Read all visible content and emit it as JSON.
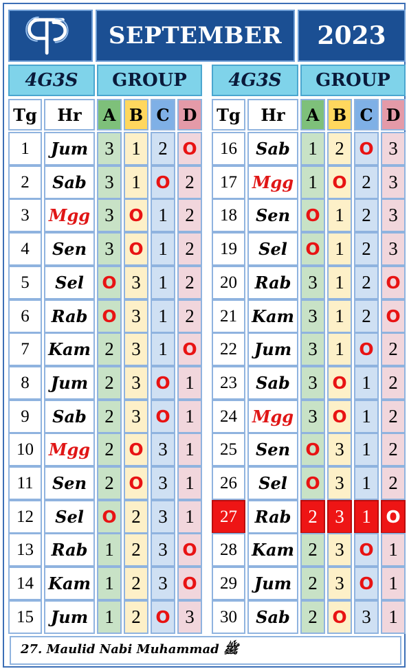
{
  "logo": "GT logo",
  "header": {
    "month": "SEPTEMBER",
    "year": "2023"
  },
  "subheader": {
    "left_code": "4G3S",
    "left_label": "GROUP",
    "right_code": "4G3S",
    "right_label": "GROUP"
  },
  "columns": [
    "Tg",
    "Hr",
    "A",
    "B",
    "C",
    "D"
  ],
  "off_marker": "O",
  "rows": [
    {
      "tg": "1",
      "hr": "Jum",
      "red": false,
      "v": [
        "3",
        "1",
        "2",
        "O"
      ]
    },
    {
      "tg": "2",
      "hr": "Sab",
      "red": false,
      "v": [
        "3",
        "1",
        "O",
        "2"
      ]
    },
    {
      "tg": "3",
      "hr": "Mgg",
      "red": true,
      "v": [
        "3",
        "O",
        "1",
        "2"
      ]
    },
    {
      "tg": "4",
      "hr": "Sen",
      "red": false,
      "v": [
        "3",
        "O",
        "1",
        "2"
      ]
    },
    {
      "tg": "5",
      "hr": "Sel",
      "red": false,
      "v": [
        "O",
        "3",
        "1",
        "2"
      ]
    },
    {
      "tg": "6",
      "hr": "Rab",
      "red": false,
      "v": [
        "O",
        "3",
        "1",
        "2"
      ]
    },
    {
      "tg": "7",
      "hr": "Kam",
      "red": false,
      "v": [
        "2",
        "3",
        "1",
        "O"
      ]
    },
    {
      "tg": "8",
      "hr": "Jum",
      "red": false,
      "v": [
        "2",
        "3",
        "O",
        "1"
      ]
    },
    {
      "tg": "9",
      "hr": "Sab",
      "red": false,
      "v": [
        "2",
        "3",
        "O",
        "1"
      ]
    },
    {
      "tg": "10",
      "hr": "Mgg",
      "red": true,
      "v": [
        "2",
        "O",
        "3",
        "1"
      ]
    },
    {
      "tg": "11",
      "hr": "Sen",
      "red": false,
      "v": [
        "2",
        "O",
        "3",
        "1"
      ]
    },
    {
      "tg": "12",
      "hr": "Sel",
      "red": false,
      "v": [
        "O",
        "2",
        "3",
        "1"
      ]
    },
    {
      "tg": "13",
      "hr": "Rab",
      "red": false,
      "v": [
        "1",
        "2",
        "3",
        "O"
      ]
    },
    {
      "tg": "14",
      "hr": "Kam",
      "red": false,
      "v": [
        "1",
        "2",
        "3",
        "O"
      ]
    },
    {
      "tg": "15",
      "hr": "Jum",
      "red": false,
      "v": [
        "1",
        "2",
        "O",
        "3"
      ]
    },
    {
      "tg": "16",
      "hr": "Sab",
      "red": false,
      "v": [
        "1",
        "2",
        "O",
        "3"
      ]
    },
    {
      "tg": "17",
      "hr": "Mgg",
      "red": true,
      "v": [
        "1",
        "O",
        "2",
        "3"
      ]
    },
    {
      "tg": "18",
      "hr": "Sen",
      "red": false,
      "v": [
        "O",
        "1",
        "2",
        "3"
      ]
    },
    {
      "tg": "19",
      "hr": "Sel",
      "red": false,
      "v": [
        "O",
        "1",
        "2",
        "3"
      ]
    },
    {
      "tg": "20",
      "hr": "Rab",
      "red": false,
      "v": [
        "3",
        "1",
        "2",
        "O"
      ]
    },
    {
      "tg": "21",
      "hr": "Kam",
      "red": false,
      "v": [
        "3",
        "1",
        "2",
        "O"
      ]
    },
    {
      "tg": "22",
      "hr": "Jum",
      "red": false,
      "v": [
        "3",
        "1",
        "O",
        "2"
      ]
    },
    {
      "tg": "23",
      "hr": "Sab",
      "red": false,
      "v": [
        "3",
        "O",
        "1",
        "2"
      ]
    },
    {
      "tg": "24",
      "hr": "Mgg",
      "red": true,
      "v": [
        "3",
        "O",
        "1",
        "2"
      ]
    },
    {
      "tg": "25",
      "hr": "Sen",
      "red": false,
      "v": [
        "O",
        "3",
        "1",
        "2"
      ]
    },
    {
      "tg": "26",
      "hr": "Sel",
      "red": false,
      "v": [
        "O",
        "3",
        "1",
        "2"
      ]
    },
    {
      "tg": "27",
      "hr": "Rab",
      "red": false,
      "holiday": true,
      "v": [
        "2",
        "3",
        "1",
        "O"
      ]
    },
    {
      "tg": "28",
      "hr": "Kam",
      "red": false,
      "v": [
        "2",
        "3",
        "O",
        "1"
      ]
    },
    {
      "tg": "29",
      "hr": "Jum",
      "red": false,
      "v": [
        "2",
        "3",
        "O",
        "1"
      ]
    },
    {
      "tg": "30",
      "hr": "Sab",
      "red": false,
      "v": [
        "2",
        "O",
        "3",
        "1"
      ]
    }
  ],
  "footer": {
    "note": "27. Maulid Nabi Muhammad ﷺ"
  },
  "colors": {
    "header_bg": "#1b4f93",
    "subheader_bg": "#7fd3ea",
    "holiday": "#ee1515",
    "off_text": "#e81313",
    "sunday_text": "#e01616"
  }
}
